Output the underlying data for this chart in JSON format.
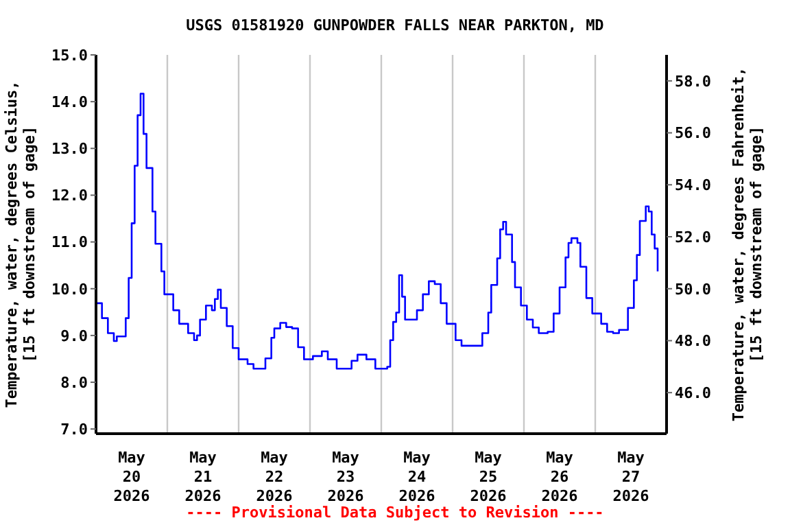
{
  "chart_data": {
    "type": "step",
    "title": "USGS 01581920 GUNPOWDER FALLS NEAR PARKTON, MD",
    "ylabel": "Temperature, water, degrees Celsius,\n[15 ft downstream of gage]",
    "y2label": "Temperature, water, degrees Fahrenheit,\n[15 ft downstream of gage]",
    "annotations": [
      "---- Provisional Data Subject to Revision ----"
    ],
    "x": [
      "2026-05-20T00:00",
      "2026-05-20T02:00",
      "2026-05-20T04:00",
      "2026-05-20T06:00",
      "2026-05-20T07:00",
      "2026-05-20T10:00",
      "2026-05-20T11:00",
      "2026-05-20T12:00",
      "2026-05-20T13:00",
      "2026-05-20T14:00",
      "2026-05-20T15:00",
      "2026-05-20T16:00",
      "2026-05-20T17:00",
      "2026-05-20T19:00",
      "2026-05-20T20:00",
      "2026-05-20T22:00",
      "2026-05-20T23:00",
      "2026-05-21T02:00",
      "2026-05-21T04:00",
      "2026-05-21T07:00",
      "2026-05-21T09:00",
      "2026-05-21T10:00",
      "2026-05-21T11:00",
      "2026-05-21T13:00",
      "2026-05-21T15:00",
      "2026-05-21T16:00",
      "2026-05-21T17:00",
      "2026-05-21T18:00",
      "2026-05-21T20:00",
      "2026-05-21T22:00",
      "2026-05-22T00:00",
      "2026-05-22T03:00",
      "2026-05-22T05:00",
      "2026-05-22T08:00",
      "2026-05-22T09:00",
      "2026-05-22T11:00",
      "2026-05-22T12:00",
      "2026-05-22T14:00",
      "2026-05-22T16:00",
      "2026-05-22T18:00",
      "2026-05-22T20:00",
      "2026-05-22T22:00",
      "2026-05-23T01:00",
      "2026-05-23T04:00",
      "2026-05-23T06:00",
      "2026-05-23T09:00",
      "2026-05-23T12:00",
      "2026-05-23T14:00",
      "2026-05-23T16:00",
      "2026-05-23T19:00",
      "2026-05-23T22:00",
      "2026-05-24T02:00",
      "2026-05-24T03:00",
      "2026-05-24T04:00",
      "2026-05-24T05:00",
      "2026-05-24T06:00",
      "2026-05-24T07:00",
      "2026-05-24T08:00",
      "2026-05-24T10:00",
      "2026-05-24T12:00",
      "2026-05-24T14:00",
      "2026-05-24T16:00",
      "2026-05-24T18:00",
      "2026-05-24T20:00",
      "2026-05-24T22:00",
      "2026-05-25T01:00",
      "2026-05-25T03:00",
      "2026-05-25T08:00",
      "2026-05-25T10:00",
      "2026-05-25T12:00",
      "2026-05-25T13:00",
      "2026-05-25T15:00",
      "2026-05-25T16:00",
      "2026-05-25T17:00",
      "2026-05-25T18:00",
      "2026-05-25T20:00",
      "2026-05-25T21:00",
      "2026-05-25T23:00",
      "2026-05-26T01:00",
      "2026-05-26T03:00",
      "2026-05-26T05:00",
      "2026-05-26T08:00",
      "2026-05-26T10:00",
      "2026-05-26T12:00",
      "2026-05-26T14:00",
      "2026-05-26T15:00",
      "2026-05-26T16:00",
      "2026-05-26T18:00",
      "2026-05-26T19:00",
      "2026-05-26T21:00",
      "2026-05-26T23:00",
      "2026-05-27T02:00",
      "2026-05-27T04:00",
      "2026-05-27T06:00",
      "2026-05-27T08:00",
      "2026-05-27T11:00",
      "2026-05-27T13:00",
      "2026-05-27T14:00",
      "2026-05-27T15:00",
      "2026-05-27T17:00",
      "2026-05-27T18:00",
      "2026-05-27T19:00",
      "2026-05-27T20:00",
      "2026-05-27T21:00"
    ],
    "series": [
      {
        "color": "#0000ff",
        "values": [
          9.69,
          9.37,
          9.05,
          8.88,
          8.98,
          9.37,
          10.23,
          11.4,
          12.63,
          13.71,
          14.17,
          13.31,
          12.58,
          11.65,
          10.96,
          10.37,
          9.88,
          9.54,
          9.25,
          9.05,
          8.9,
          9.0,
          9.34,
          9.64,
          9.54,
          9.78,
          9.98,
          9.59,
          9.2,
          8.73,
          8.49,
          8.39,
          8.29,
          8.29,
          8.51,
          8.95,
          9.15,
          9.27,
          9.18,
          9.15,
          8.75,
          8.49,
          8.56,
          8.66,
          8.49,
          8.29,
          8.29,
          8.46,
          8.59,
          8.49,
          8.29,
          8.33,
          8.9,
          9.29,
          9.49,
          10.29,
          9.83,
          9.34,
          9.34,
          9.54,
          9.88,
          10.16,
          10.1,
          9.69,
          9.25,
          8.9,
          8.78,
          8.78,
          9.05,
          9.49,
          10.08,
          10.65,
          11.27,
          11.43,
          11.16,
          10.57,
          10.03,
          9.64,
          9.34,
          9.17,
          9.05,
          9.08,
          9.47,
          10.03,
          10.67,
          10.98,
          11.08,
          10.98,
          10.47,
          9.8,
          9.47,
          9.25,
          9.08,
          9.05,
          9.12,
          9.59,
          10.18,
          10.72,
          11.45,
          11.76,
          11.65,
          11.16,
          10.86,
          10.37
        ]
      }
    ],
    "xlim": [
      "2026-05-20T00:00",
      "2026-05-28T00:00"
    ],
    "xticks": [
      {
        "value": "2026-05-20T00:00",
        "label": null
      },
      {
        "value": "2026-05-20T12:00",
        "label": "May\n20\n2026"
      },
      {
        "value": "2026-05-21T00:00",
        "label": null
      },
      {
        "value": "2026-05-21T12:00",
        "label": "May\n21\n2026"
      },
      {
        "value": "2026-05-22T00:00",
        "label": null
      },
      {
        "value": "2026-05-22T12:00",
        "label": "May\n22\n2026"
      },
      {
        "value": "2026-05-23T00:00",
        "label": null
      },
      {
        "value": "2026-05-23T12:00",
        "label": "May\n23\n2026"
      },
      {
        "value": "2026-05-24T00:00",
        "label": null
      },
      {
        "value": "2026-05-24T12:00",
        "label": "May\n24\n2026"
      },
      {
        "value": "2026-05-25T00:00",
        "label": null
      },
      {
        "value": "2026-05-25T12:00",
        "label": "May\n25\n2026"
      },
      {
        "value": "2026-05-26T00:00",
        "label": null
      },
      {
        "value": "2026-05-26T12:00",
        "label": "May\n26\n2026"
      },
      {
        "value": "2026-05-27T00:00",
        "label": null
      },
      {
        "value": "2026-05-27T12:00",
        "label": "May\n27\n2026"
      },
      {
        "value": "2026-05-28T00:00",
        "label": null
      }
    ],
    "ylim": [
      6.9,
      15.0
    ],
    "yticks": [
      {
        "value": 7,
        "label": "7.0"
      },
      {
        "value": 8,
        "label": "8.0"
      },
      {
        "value": 9,
        "label": "9.0"
      },
      {
        "value": 10,
        "label": "10.0"
      },
      {
        "value": 11,
        "label": "11.0"
      },
      {
        "value": 12,
        "label": "12.0"
      },
      {
        "value": 13,
        "label": "13.0"
      },
      {
        "value": 14,
        "label": "14.0"
      },
      {
        "value": 15,
        "label": "15.0"
      }
    ],
    "y2lim": [
      44.42,
      59.0
    ],
    "y2ticks": [
      {
        "value": 46,
        "label": "46.0"
      },
      {
        "value": 48,
        "label": "48.0"
      },
      {
        "value": 50,
        "label": "50.0"
      },
      {
        "value": 52,
        "label": "52.0"
      },
      {
        "value": 54,
        "label": "54.0"
      },
      {
        "value": 56,
        "label": "56.0"
      },
      {
        "value": 58,
        "label": "58.0"
      }
    ],
    "grid": true,
    "legend": false
  }
}
